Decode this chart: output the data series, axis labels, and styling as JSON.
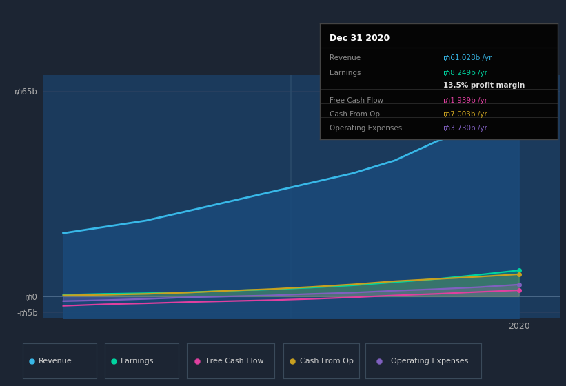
{
  "background_color": "#1c2533",
  "plot_bg_color": "#1b3a5c",
  "ytick_values": [
    -5,
    0,
    65
  ],
  "ylabel_ticks": [
    "-₥5b",
    "₥0",
    "₥65b"
  ],
  "ylim": [
    -7,
    70
  ],
  "xlim_start": 2008.5,
  "xlim_end": 2021.0,
  "vline_x": 2014.5,
  "vline_color": "#2a4a6a",
  "grid_color": "#2a4060",
  "series": {
    "Revenue": {
      "color": "#38b8e8",
      "fill_color": "#1a4a7a",
      "fill_alpha": 0.85,
      "x": [
        2009,
        2010,
        2011,
        2012,
        2013,
        2014,
        2015,
        2016,
        2017,
        2018,
        2019,
        2020
      ],
      "y": [
        20,
        22,
        24,
        27,
        30,
        33,
        36,
        39,
        43,
        49,
        54,
        61
      ]
    },
    "Earnings": {
      "color": "#00d4a0",
      "x": [
        2009,
        2010,
        2011,
        2012,
        2013,
        2014,
        2015,
        2016,
        2017,
        2018,
        2019,
        2020
      ],
      "y": [
        0.5,
        0.8,
        1.0,
        1.3,
        1.8,
        2.2,
        2.8,
        3.5,
        4.5,
        5.5,
        6.8,
        8.249
      ]
    },
    "Free Cash Flow": {
      "color": "#e040a0",
      "x": [
        2009,
        2010,
        2011,
        2012,
        2013,
        2014,
        2015,
        2016,
        2017,
        2018,
        2019,
        2020
      ],
      "y": [
        -3.0,
        -2.5,
        -2.2,
        -1.8,
        -1.5,
        -1.2,
        -0.8,
        -0.3,
        0.3,
        0.8,
        1.4,
        1.939
      ]
    },
    "Cash From Op": {
      "color": "#c8a020",
      "x": [
        2009,
        2010,
        2011,
        2012,
        2013,
        2014,
        2015,
        2016,
        2017,
        2018,
        2019,
        2020
      ],
      "y": [
        0.3,
        0.5,
        0.8,
        1.2,
        1.8,
        2.3,
        3.0,
        3.8,
        4.8,
        5.5,
        6.2,
        7.003
      ]
    },
    "Operating Expenses": {
      "color": "#8060c0",
      "x": [
        2009,
        2010,
        2011,
        2012,
        2013,
        2014,
        2015,
        2016,
        2017,
        2018,
        2019,
        2020
      ],
      "y": [
        -1.5,
        -1.2,
        -0.8,
        -0.3,
        0.0,
        0.3,
        0.8,
        1.2,
        1.8,
        2.3,
        2.9,
        3.73
      ]
    }
  },
  "info_box": {
    "title": "Dec 31 2020",
    "rows": [
      {
        "label": "Revenue",
        "value": "₥61.028b /yr",
        "value_color": "#38b8e8",
        "divider_above": false
      },
      {
        "label": "Earnings",
        "value": "₥8.249b /yr",
        "value_color": "#00d4a0",
        "divider_above": false
      },
      {
        "label": "",
        "value": "13.5% profit margin",
        "value_color": "#dddddd",
        "bold": true,
        "divider_above": false
      },
      {
        "label": "Free Cash Flow",
        "value": "₥1.939b /yr",
        "value_color": "#e040a0",
        "divider_above": true
      },
      {
        "label": "Cash From Op",
        "value": "₥7.003b /yr",
        "value_color": "#c8a020",
        "divider_above": true
      },
      {
        "label": "Operating Expenses",
        "value": "₥3.730b /yr",
        "value_color": "#8060c0",
        "divider_above": true
      }
    ],
    "bg_color": "#050505",
    "text_color": "#888888",
    "title_color": "#ffffff",
    "border_color": "#444444"
  },
  "legend": [
    {
      "label": "Revenue",
      "color": "#38b8e8"
    },
    {
      "label": "Earnings",
      "color": "#00d4a0"
    },
    {
      "label": "Free Cash Flow",
      "color": "#e040a0"
    },
    {
      "label": "Cash From Op",
      "color": "#c8a020"
    },
    {
      "label": "Operating Expenses",
      "color": "#8060c0"
    }
  ]
}
